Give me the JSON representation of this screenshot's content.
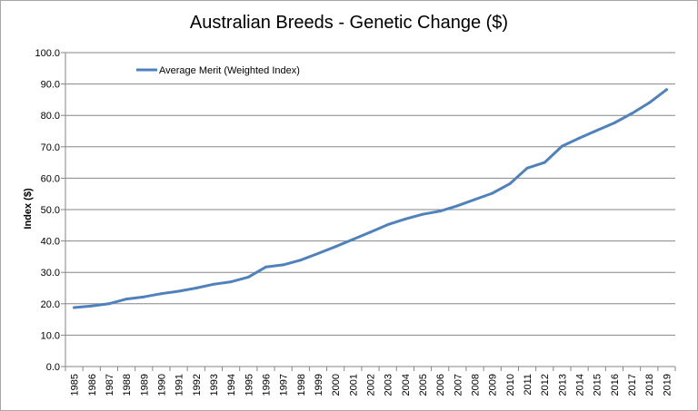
{
  "chart_data": {
    "type": "line",
    "title": "Australian Breeds - Genetic Change ($)",
    "xlabel": "",
    "ylabel": "Index ($)",
    "ylim": [
      0,
      100
    ],
    "y_ticks": [
      "0.0",
      "10.0",
      "20.0",
      "30.0",
      "40.0",
      "50.0",
      "60.0",
      "70.0",
      "80.0",
      "90.0",
      "100.0"
    ],
    "grid": true,
    "legend_position": "top-left",
    "categories": [
      "1985",
      "1986",
      "1987",
      "1988",
      "1989",
      "1990",
      "1991",
      "1992",
      "1993",
      "1994",
      "1995",
      "1996",
      "1997",
      "1998",
      "1999",
      "2000",
      "2001",
      "2002",
      "2003",
      "2004",
      "2005",
      "2006",
      "2007",
      "2008",
      "2009",
      "2010",
      "2011",
      "2012",
      "2013",
      "2014",
      "2015",
      "2016",
      "2017",
      "2018",
      "2019"
    ],
    "series": [
      {
        "name": "Average Merit (Weighted Index)",
        "color": "#4f81bd",
        "values": [
          18.8,
          19.3,
          20.0,
          21.5,
          22.2,
          23.2,
          24.0,
          25.0,
          26.2,
          27.0,
          28.5,
          31.7,
          32.4,
          33.9,
          36.0,
          38.2,
          40.5,
          42.8,
          45.2,
          47.0,
          48.5,
          49.5,
          51.2,
          53.2,
          55.2,
          58.2,
          63.2,
          65.0,
          70.2,
          72.8,
          75.2,
          77.6,
          80.6,
          84.0,
          88.2
        ]
      }
    ]
  }
}
